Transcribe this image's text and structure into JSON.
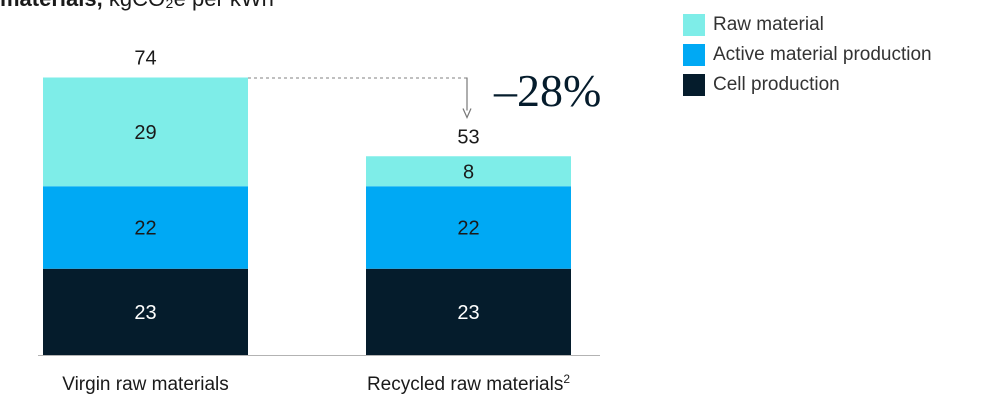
{
  "header": {
    "title_bold": "materials,",
    "title_unit": "kgCO₂e per kWh"
  },
  "chart_data": {
    "type": "bar",
    "stacked": true,
    "categories": [
      "Virgin raw materials",
      "Recycled raw materials"
    ],
    "category_footnotes": [
      "",
      "2"
    ],
    "series": [
      {
        "name": "Cell production",
        "values": [
          23,
          23
        ],
        "color": "#051c2c"
      },
      {
        "name": "Active material production",
        "values": [
          22,
          22
        ],
        "color": "#00a9f4"
      },
      {
        "name": "Raw material",
        "values": [
          29,
          8
        ],
        "color": "#7eede8"
      }
    ],
    "totals": [
      74,
      53
    ],
    "annotation": "–28%",
    "legend_position": "top-right",
    "grid": false,
    "ylim": [
      0,
      74
    ]
  },
  "legend": [
    {
      "label": "Raw material",
      "color": "#7eede8"
    },
    {
      "label": "Active material production",
      "color": "#00a9f4"
    },
    {
      "label": "Cell production",
      "color": "#051c2c"
    }
  ]
}
